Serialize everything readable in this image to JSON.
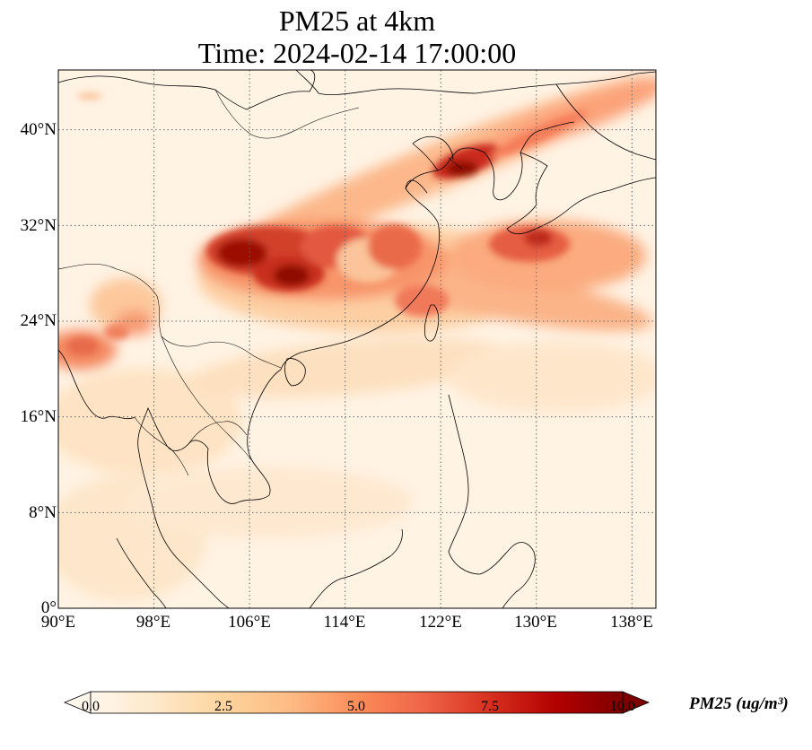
{
  "title": {
    "line1": "PM25 at 4km",
    "line2": "Time: 2024-02-14 17:00:00"
  },
  "map": {
    "projection": "PlateCarree",
    "lon_range": [
      90,
      140
    ],
    "lat_range": [
      0,
      45
    ],
    "x_ticks": [
      "90°E",
      "98°E",
      "106°E",
      "114°E",
      "122°E",
      "130°E",
      "138°E"
    ],
    "y_ticks": [
      "0°",
      "8°N",
      "16°N",
      "24°N",
      "32°N",
      "40°N"
    ],
    "gridlines": "dotted"
  },
  "colorbar": {
    "label": "PM25 (ug/m³)",
    "ticks": [
      "0.0",
      "2.5",
      "5.0",
      "7.5",
      "10.0"
    ],
    "range": [
      0,
      10
    ],
    "colormap": "OrRd",
    "colors": [
      "#fff7ec",
      "#fee8c8",
      "#fdd49e",
      "#fdbb84",
      "#fc8d59",
      "#ef6548",
      "#d7301f",
      "#b30000",
      "#7f0000"
    ]
  }
}
